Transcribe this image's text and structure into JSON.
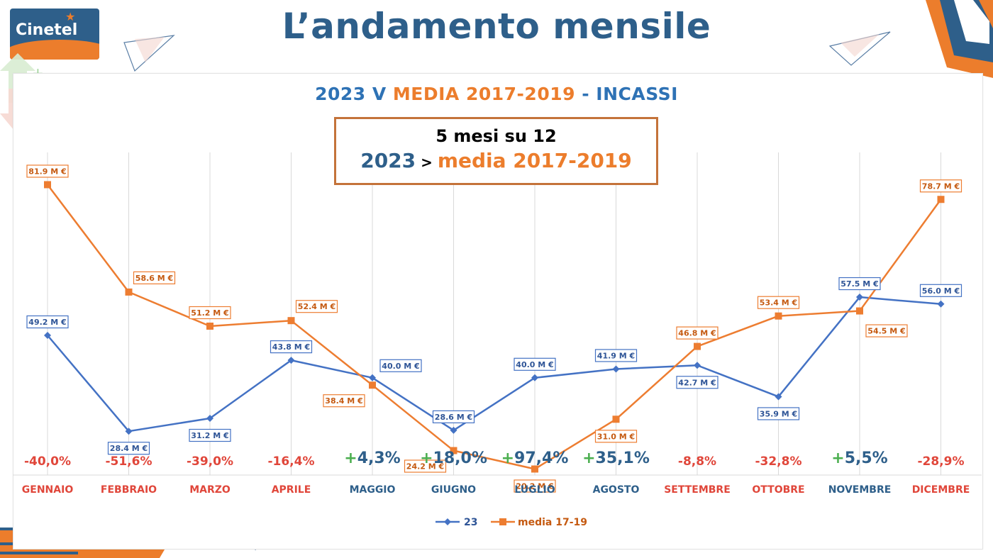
{
  "header": {
    "logo_text": "Cinetel",
    "title": "L’andamento mensile"
  },
  "chart_heading": {
    "part1": "2023 V ",
    "part2": "MEDIA 2017-2019",
    "part3": " - INCASSI"
  },
  "callout": {
    "line1": "5 mesi su 12",
    "line2_a": "2023",
    "line2_gt": " > ",
    "line2_b": "media 2017-2019"
  },
  "colors": {
    "series_23": "#4472c4",
    "series_media": "#ed7d31",
    "positive": "#4caf50",
    "negative": "#e0463a",
    "month_positive": "#2e5f8a",
    "month_negative": "#e0463a"
  },
  "chart_data": {
    "type": "line",
    "categories": [
      "GENNAIO",
      "FEBBRAIO",
      "MARZO",
      "APRILE",
      "MAGGIO",
      "GIUGNO",
      "LUGLIO",
      "AGOSTO",
      "SETTEMBRE",
      "OTTOBRE",
      "NOVEMBRE",
      "DICEMBRE"
    ],
    "series": [
      {
        "name": "23",
        "values": [
          49.2,
          28.4,
          31.2,
          43.8,
          40.0,
          28.6,
          40.0,
          41.9,
          42.7,
          35.9,
          57.5,
          56.0
        ],
        "labels": [
          "49.2 M €",
          "28.4 M €",
          "31.2 M €",
          "43.8 M €",
          "40.0 M €",
          "28.6 M €",
          "40.0 M €",
          "41.9 M €",
          "42.7 M €",
          "35.9 M €",
          "57.5 M €",
          "56.0 M €"
        ],
        "label_positions": [
          "above",
          "below",
          "below",
          "above",
          "right",
          "above",
          "above",
          "above",
          "below",
          "below",
          "above",
          "above"
        ]
      },
      {
        "name": "media 17-19",
        "values": [
          81.9,
          58.6,
          51.2,
          52.4,
          38.4,
          24.2,
          20.2,
          31.0,
          46.8,
          53.4,
          54.5,
          78.7
        ],
        "labels": [
          "81.9 M €",
          "58.6 M €",
          "51.2 M €",
          "52.4 M €",
          "38.4 M €",
          "24.2 M €",
          "20.2 M €",
          "31.0 M €",
          "46.8 M €",
          "53.4 M €",
          "54.5 M €",
          "78.7 M €"
        ],
        "label_positions": [
          "above",
          "above-right",
          "above",
          "above-right",
          "below-left",
          "below-left",
          "below",
          "below",
          "above",
          "above",
          "below-right",
          "above"
        ]
      }
    ],
    "variations": [
      {
        "text": "-40,0%",
        "sign": "negative"
      },
      {
        "text": "-51,6%",
        "sign": "negative"
      },
      {
        "text": "-39,0%",
        "sign": "negative"
      },
      {
        "text": "-16,4%",
        "sign": "negative"
      },
      {
        "text": "4,3%",
        "sign": "positive"
      },
      {
        "text": "18,0%",
        "sign": "positive"
      },
      {
        "text": "97,4%",
        "sign": "positive"
      },
      {
        "text": "35,1%",
        "sign": "positive"
      },
      {
        "text": "-8,8%",
        "sign": "negative"
      },
      {
        "text": "-32,8%",
        "sign": "negative"
      },
      {
        "text": "5,5%",
        "sign": "positive"
      },
      {
        "text": "-28,9%",
        "sign": "negative"
      }
    ],
    "legend": [
      {
        "name": "23",
        "marker": "diamond"
      },
      {
        "name": "media 17-19",
        "marker": "square"
      }
    ],
    "legend_position": "bottom",
    "grid": "vertical"
  }
}
